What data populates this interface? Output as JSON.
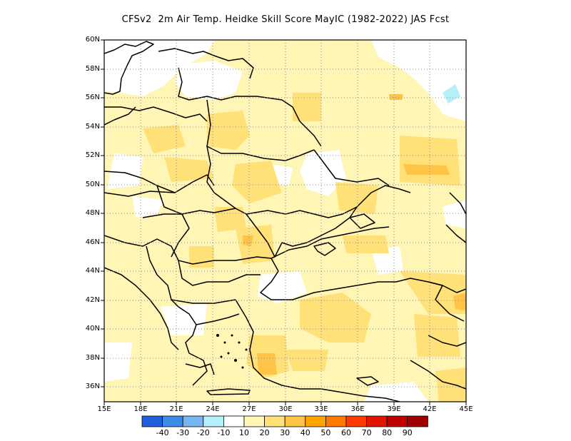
{
  "title": "CFSv2  2m Air Temp. Heidke Skill Score MayIC (1982-2022) JAS Fcst",
  "lat_labels": [
    "60N",
    "58N",
    "56N",
    "54N",
    "52N",
    "50N",
    "48N",
    "46N",
    "44N",
    "42N",
    "40N",
    "38N",
    "36N"
  ],
  "lon_labels": [
    "15E",
    "18E",
    "21E",
    "24E",
    "27E",
    "30E",
    "33E",
    "36E",
    "39E",
    "42E",
    "45E"
  ],
  "map_extent": {
    "lon": [
      15,
      45
    ],
    "lat": [
      35,
      60
    ]
  },
  "colorbar": {
    "colors": [
      "#1f5fdc",
      "#3c8ce6",
      "#78b4f0",
      "#b4f0fa",
      "#ffffff",
      "#fff5b4",
      "#ffe178",
      "#ffc346",
      "#ffa500",
      "#ff7800",
      "#ff3c00",
      "#e11400",
      "#c00000",
      "#a00000"
    ],
    "labels": [
      "-40",
      "-30",
      "-20",
      "-10",
      "10",
      "20",
      "30",
      "40",
      "50",
      "60",
      "70",
      "80",
      "90"
    ]
  },
  "fill_colors": {
    "light": "#fff5b4",
    "medium": "#ffe178",
    "strong": "#ffc346",
    "cyan": "#b4f0fa",
    "white": "#ffffff"
  }
}
